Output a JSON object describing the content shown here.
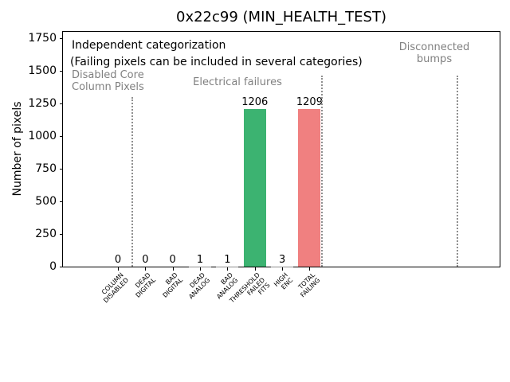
{
  "chart_data": {
    "type": "bar",
    "title": "0x22c99 (MIN_HEALTH_TEST)",
    "ylabel": "Number of pixels",
    "xlabel": "",
    "ylim": [
      0,
      1800
    ],
    "yticks": [
      0,
      250,
      500,
      750,
      1000,
      1250,
      1500,
      1750
    ],
    "grid": "off",
    "legend": "none",
    "categories": [
      "COLUMN\nDISABLED",
      "DEAD\nDIGITAL",
      "BAD\nDIGITAL",
      "DEAD\nANALOG",
      "BAD\nANALOG",
      "THRESHOLD\nFAILED\nFITS",
      "HIGH\nENC",
      "TOTAL\nFAILING"
    ],
    "values": [
      0,
      0,
      0,
      1,
      1,
      1206,
      3,
      1209
    ],
    "bar_value_labels": [
      "0",
      "0",
      "0",
      "1",
      "1",
      "1206",
      "3",
      "1209"
    ],
    "bar_colors": [
      "#8f8f8f",
      "#8f8f8f",
      "#8f8f8f",
      "#8f8f8f",
      "#8f8f8f",
      "#3cb371",
      "#8f8f8f",
      "#f08080"
    ],
    "annotations": {
      "independent": "Independent categorization",
      "failing_note": "(Failing pixels can be included in several categories)",
      "disabled_core": "Disabled Core\nColumn Pixels",
      "electrical": "Electrical failures",
      "disconnected": "Disconnected\nbumps"
    },
    "separators": [
      {
        "x": 86,
        "top": 82
      },
      {
        "x": 324,
        "top": 55
      },
      {
        "x": 494,
        "top": 55
      }
    ],
    "colors": {
      "highlight_green": "#3cb371",
      "highlight_red": "#f08080",
      "annotation_gray": "#808080",
      "separator_gray": "#8f8f8f",
      "axis_black": "#000000",
      "background": "#ffffff"
    }
  }
}
